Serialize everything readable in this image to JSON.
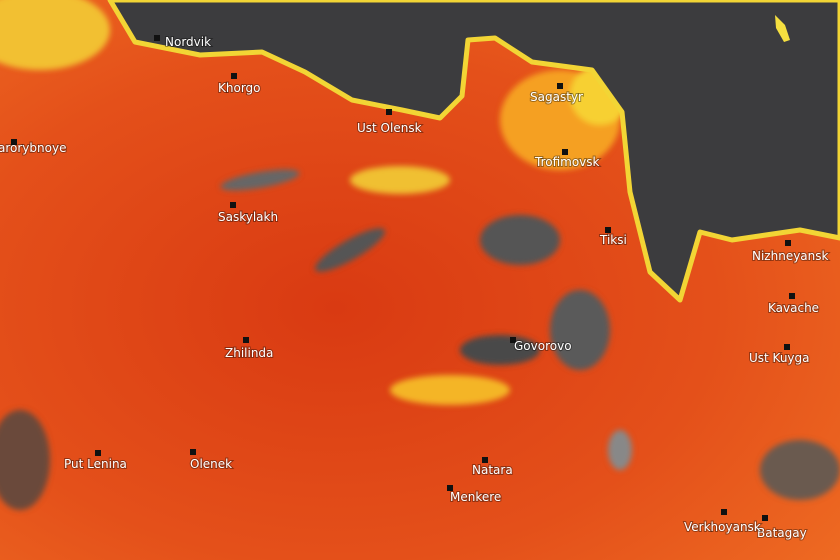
{
  "labels": [
    "Nordvik",
    "Khorgo",
    "Ust Olensk",
    "Sagastyr",
    "Trofimovsk",
    "Tiksi",
    "Nizhneyansk",
    "Kavache",
    "Ust Kuyga",
    "Govorovo",
    "Saskylakh",
    "arorybnoye",
    "Zhilinda",
    "Put Lenina",
    "Olenek",
    "Natara",
    "Menkere",
    "Batagay",
    "Verkhoyansk"
  ]
}
